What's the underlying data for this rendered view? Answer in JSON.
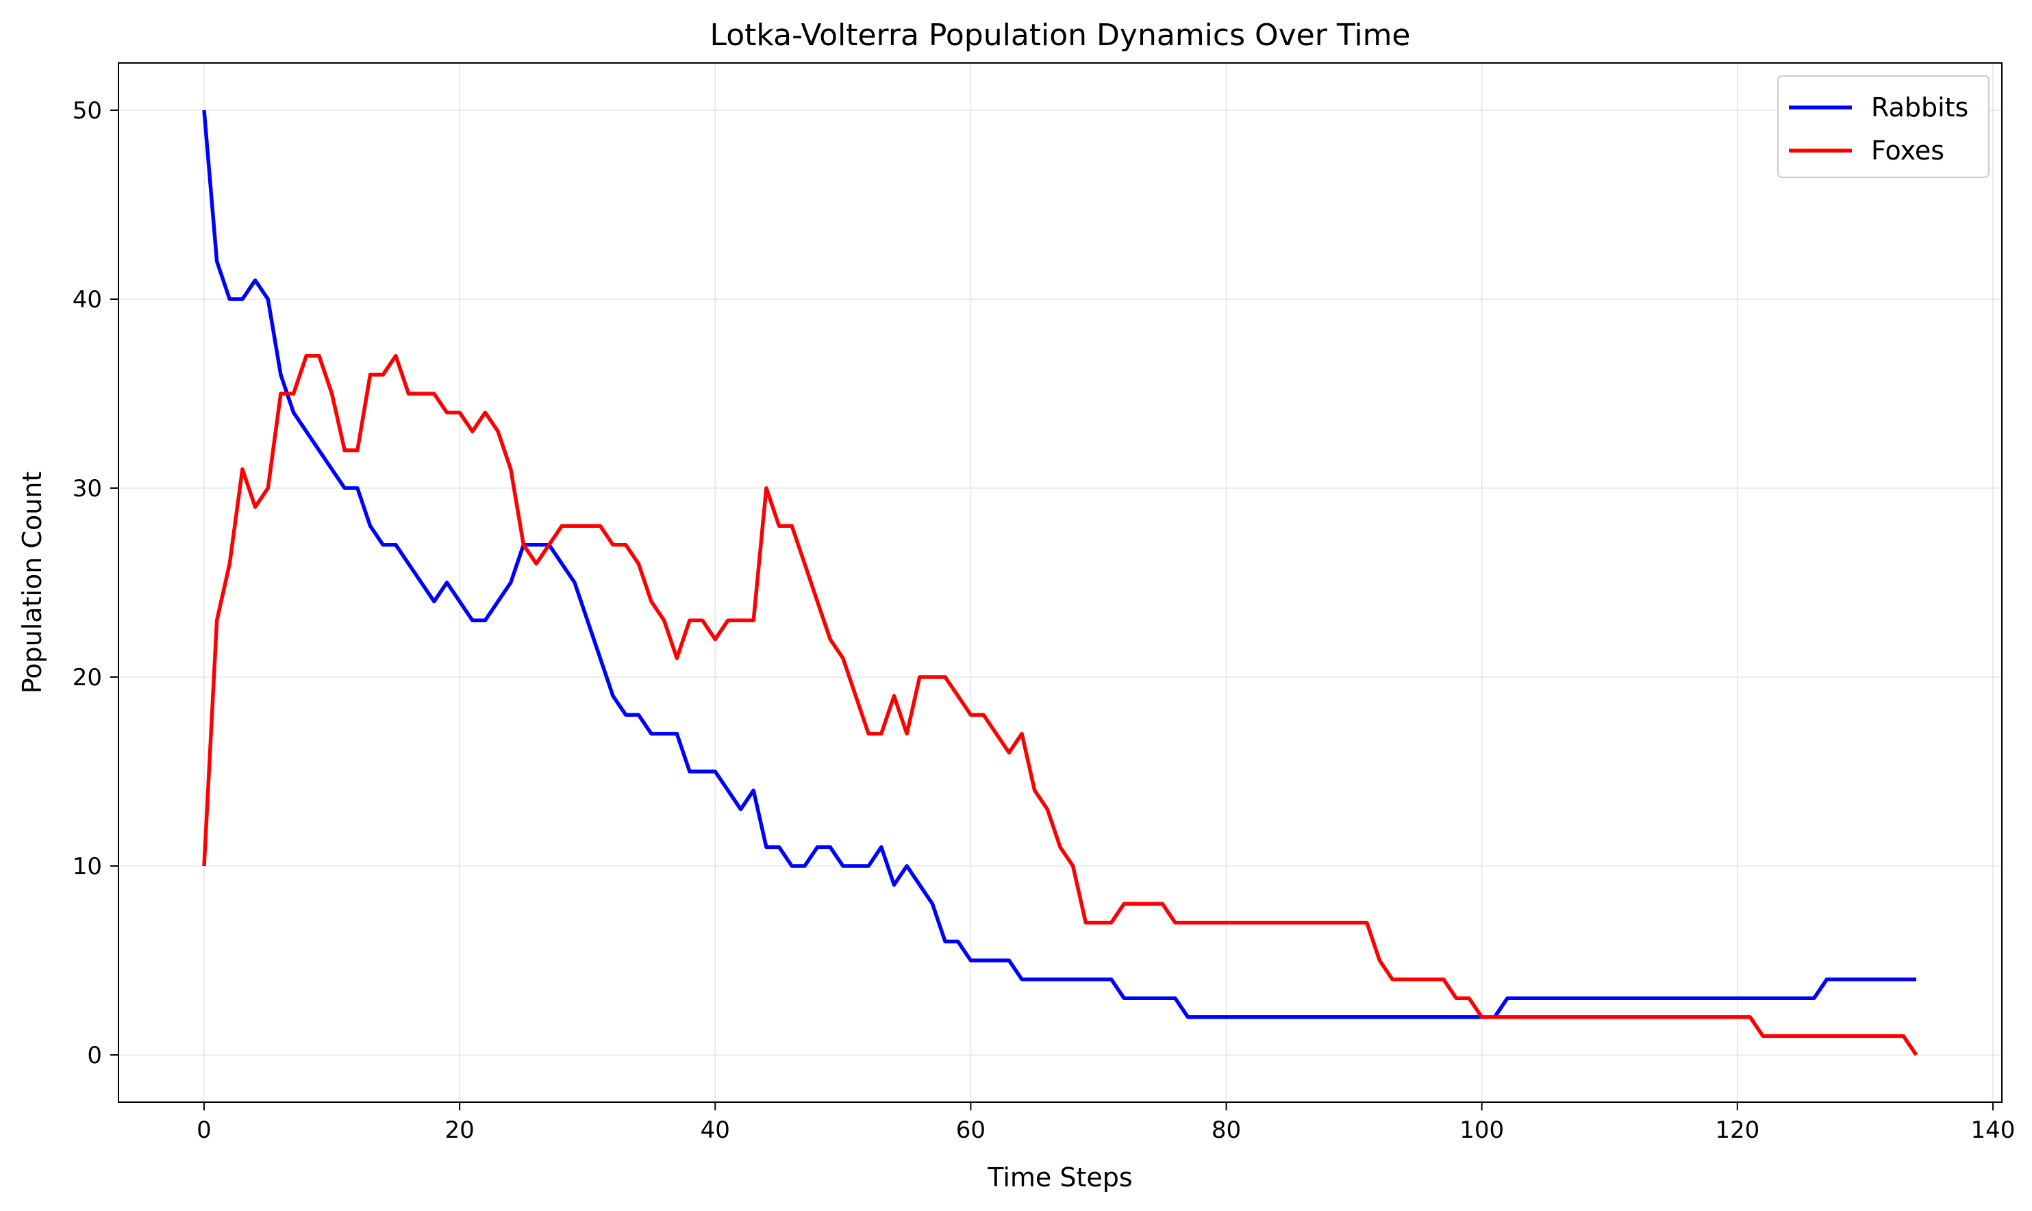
{
  "chart_data": {
    "type": "line",
    "title": "Lotka-Volterra Population Dynamics Over Time",
    "xlabel": "Time Steps",
    "ylabel": "Population Count",
    "xlim": [
      -6.7,
      140.7
    ],
    "ylim": [
      -2.5,
      52.5
    ],
    "xticks": [
      0,
      20,
      40,
      60,
      80,
      100,
      120,
      140
    ],
    "yticks": [
      0,
      10,
      20,
      30,
      40,
      50
    ],
    "grid": true,
    "legend_position": "top-right",
    "series": [
      {
        "name": "Rabbits",
        "color": "#0000ff",
        "values": [
          50,
          42,
          40,
          40,
          41,
          40,
          36,
          34,
          33,
          32,
          31,
          30,
          30,
          28,
          27,
          27,
          26,
          25,
          24,
          25,
          24,
          23,
          23,
          24,
          25,
          27,
          27,
          27,
          26,
          25,
          23,
          21,
          19,
          18,
          18,
          17,
          17,
          17,
          15,
          15,
          15,
          14,
          13,
          14,
          11,
          11,
          10,
          10,
          11,
          11,
          10,
          10,
          10,
          11,
          9,
          10,
          9,
          8,
          6,
          6,
          5,
          5,
          5,
          5,
          4,
          4,
          4,
          4,
          4,
          4,
          4,
          4,
          3,
          3,
          3,
          3,
          3,
          2,
          2,
          2,
          2,
          2,
          2,
          2,
          2,
          2,
          2,
          2,
          2,
          2,
          2,
          2,
          2,
          2,
          2,
          2,
          2,
          2,
          2,
          2,
          2,
          2,
          3,
          3,
          3,
          3,
          3,
          3,
          3,
          3,
          3,
          3,
          3,
          3,
          3,
          3,
          3,
          3,
          3,
          3,
          3,
          3,
          3,
          3,
          3,
          3,
          3,
          4,
          4,
          4,
          4,
          4,
          4,
          4,
          4
        ]
      },
      {
        "name": "Foxes",
        "color": "#ff0000",
        "values": [
          10,
          23,
          26,
          31,
          29,
          30,
          35,
          35,
          37,
          37,
          35,
          32,
          32,
          36,
          36,
          37,
          35,
          35,
          35,
          34,
          34,
          33,
          34,
          33,
          31,
          27,
          26,
          27,
          28,
          28,
          28,
          28,
          27,
          27,
          26,
          24,
          23,
          21,
          23,
          23,
          22,
          23,
          23,
          23,
          30,
          28,
          28,
          26,
          24,
          22,
          21,
          19,
          17,
          17,
          19,
          17,
          20,
          20,
          20,
          19,
          18,
          18,
          17,
          16,
          17,
          14,
          13,
          11,
          10,
          7,
          7,
          7,
          8,
          8,
          8,
          8,
          7,
          7,
          7,
          7,
          7,
          7,
          7,
          7,
          7,
          7,
          7,
          7,
          7,
          7,
          7,
          7,
          5,
          4,
          4,
          4,
          4,
          4,
          3,
          3,
          2,
          2,
          2,
          2,
          2,
          2,
          2,
          2,
          2,
          2,
          2,
          2,
          2,
          2,
          2,
          2,
          2,
          2,
          2,
          2,
          2,
          2,
          1,
          1,
          1,
          1,
          1,
          1,
          1,
          1,
          1,
          1,
          1,
          1,
          0
        ]
      }
    ]
  }
}
